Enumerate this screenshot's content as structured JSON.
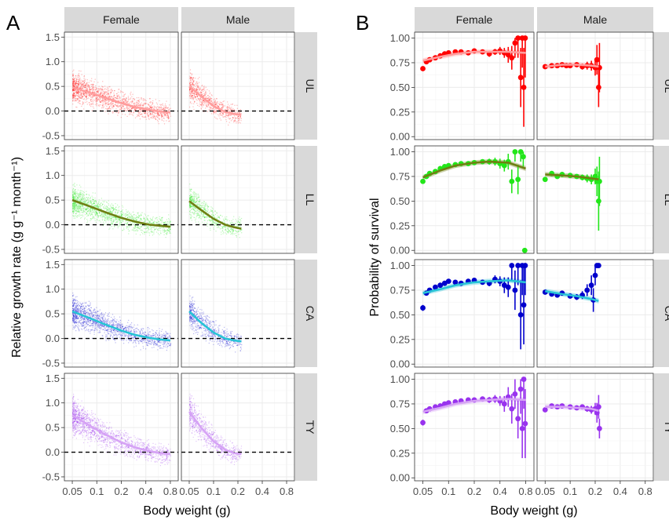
{
  "figure": {
    "panel_letters": [
      "A",
      "B"
    ],
    "sex_labels": [
      "Female",
      "Male"
    ],
    "line_labels": [
      "UL",
      "LL",
      "CA",
      "TY"
    ],
    "colors": {
      "UL": {
        "points": "#ff0000",
        "line": "#ff9c9c"
      },
      "LL": {
        "points": "#22e61a",
        "line": "#6f7f13"
      },
      "CA": {
        "points": "#0000cc",
        "line": "#27c3d6"
      },
      "TY": {
        "points": "#9933ee",
        "line": "#d6a3f5"
      }
    }
  },
  "chart_data": [
    {
      "type": "scatter",
      "panel": "A",
      "ylabel": "Relative growth rate (g g⁻¹ month⁻¹)",
      "xlabel": "Body weight (g)",
      "x_scale": "log",
      "xlim": [
        0.04,
        1.0
      ],
      "ylim": [
        -0.58,
        1.6
      ],
      "x_ticks": [
        0.05,
        0.1,
        0.2,
        0.4,
        0.8
      ],
      "x_tick_labels": [
        "0.05",
        "0.1",
        "0.2",
        "0.4",
        "0.8"
      ],
      "y_ticks": [
        -0.5,
        0.0,
        0.5,
        1.0,
        1.5
      ],
      "y_tick_labels": [
        "-0.5",
        "0.0",
        "0.5",
        "1.0",
        "1.5"
      ],
      "reference_line": {
        "y": 0,
        "style": "dashed"
      },
      "facets": [
        {
          "line": "UL",
          "sex": "Female",
          "x_range": [
            0.05,
            0.8
          ],
          "fit": {
            "x": [
              0.05,
              0.08,
              0.12,
              0.2,
              0.3,
              0.45,
              0.6,
              0.8
            ],
            "y": [
              0.48,
              0.38,
              0.28,
              0.16,
              0.08,
              0.02,
              -0.01,
              -0.03
            ]
          }
        },
        {
          "line": "UL",
          "sex": "Male",
          "x_range": [
            0.05,
            0.22
          ],
          "fit": {
            "x": [
              0.05,
              0.07,
              0.1,
              0.14,
              0.18,
              0.22
            ],
            "y": [
              0.5,
              0.3,
              0.1,
              -0.02,
              -0.06,
              -0.08
            ]
          }
        },
        {
          "line": "LL",
          "sex": "Female",
          "x_range": [
            0.05,
            0.8
          ],
          "fit": {
            "x": [
              0.05,
              0.08,
              0.12,
              0.2,
              0.3,
              0.45,
              0.6,
              0.8
            ],
            "y": [
              0.5,
              0.38,
              0.27,
              0.14,
              0.06,
              0.0,
              -0.02,
              -0.04
            ]
          }
        },
        {
          "line": "LL",
          "sex": "Male",
          "x_range": [
            0.05,
            0.22
          ],
          "fit": {
            "x": [
              0.05,
              0.07,
              0.1,
              0.14,
              0.18,
              0.22
            ],
            "y": [
              0.48,
              0.3,
              0.12,
              0.0,
              -0.05,
              -0.08
            ]
          }
        },
        {
          "line": "CA",
          "sex": "Female",
          "x_range": [
            0.05,
            0.8
          ],
          "fit": {
            "x": [
              0.05,
              0.08,
              0.12,
              0.2,
              0.3,
              0.45,
              0.6,
              0.8
            ],
            "y": [
              0.55,
              0.42,
              0.3,
              0.16,
              0.07,
              0.01,
              -0.02,
              -0.04
            ]
          }
        },
        {
          "line": "CA",
          "sex": "Male",
          "x_range": [
            0.05,
            0.22
          ],
          "fit": {
            "x": [
              0.05,
              0.07,
              0.1,
              0.14,
              0.18,
              0.22
            ],
            "y": [
              0.55,
              0.32,
              0.12,
              0.0,
              -0.04,
              -0.06
            ]
          }
        },
        {
          "line": "TY",
          "sex": "Female",
          "x_range": [
            0.05,
            0.8
          ],
          "fit": {
            "x": [
              0.05,
              0.08,
              0.12,
              0.2,
              0.3,
              0.45,
              0.6,
              0.8
            ],
            "y": [
              0.75,
              0.55,
              0.38,
              0.2,
              0.09,
              0.02,
              -0.02,
              -0.04
            ]
          }
        },
        {
          "line": "TY",
          "sex": "Male",
          "x_range": [
            0.05,
            0.22
          ],
          "fit": {
            "x": [
              0.05,
              0.07,
              0.1,
              0.14,
              0.18,
              0.22
            ],
            "y": [
              0.82,
              0.5,
              0.22,
              0.05,
              -0.02,
              -0.04
            ]
          }
        }
      ]
    },
    {
      "type": "scatter",
      "panel": "B",
      "ylabel": "Probability of survival",
      "xlabel": "Body weight (g)",
      "x_scale": "log",
      "xlim": [
        0.04,
        1.0
      ],
      "ylim": [
        -0.03,
        1.06
      ],
      "x_ticks": [
        0.05,
        0.1,
        0.2,
        0.4,
        0.8
      ],
      "x_tick_labels": [
        "0.05",
        "0.1",
        "0.2",
        "0.4",
        "0.8"
      ],
      "y_ticks": [
        0.0,
        0.25,
        0.5,
        0.75,
        1.0
      ],
      "y_tick_labels": [
        "0.00",
        "0.25",
        "0.50",
        "0.75",
        "1.00"
      ],
      "facets": [
        {
          "line": "UL",
          "sex": "Female",
          "fit": {
            "x": [
              0.05,
              0.08,
              0.12,
              0.2,
              0.3,
              0.5,
              0.8
            ],
            "y": [
              0.77,
              0.81,
              0.84,
              0.86,
              0.86,
              0.86,
              0.85
            ]
          },
          "points": {
            "x": [
              0.05,
              0.055,
              0.06,
              0.07,
              0.08,
              0.09,
              0.1,
              0.12,
              0.14,
              0.17,
              0.2,
              0.25,
              0.3,
              0.35,
              0.4,
              0.45,
              0.5,
              0.55,
              0.6,
              0.65,
              0.7,
              0.73,
              0.76,
              0.79
            ],
            "y": [
              0.69,
              0.76,
              0.78,
              0.8,
              0.82,
              0.84,
              0.85,
              0.86,
              0.86,
              0.85,
              0.87,
              0.86,
              0.84,
              0.86,
              0.87,
              0.85,
              0.83,
              0.8,
              0.95,
              1.0,
              0.6,
              1.0,
              0.5,
              1.0
            ],
            "err": [
              0.02,
              0.02,
              0.02,
              0.02,
              0.02,
              0.02,
              0.02,
              0.02,
              0.02,
              0.02,
              0.02,
              0.02,
              0.03,
              0.03,
              0.04,
              0.05,
              0.08,
              0.12,
              0.15,
              0.2,
              0.3,
              0.3,
              0.4,
              0.4
            ]
          }
        },
        {
          "line": "UL",
          "sex": "Male",
          "fit": {
            "x": [
              0.05,
              0.08,
              0.12,
              0.18,
              0.22
            ],
            "y": [
              0.71,
              0.73,
              0.73,
              0.72,
              0.71
            ]
          },
          "points": {
            "x": [
              0.05,
              0.06,
              0.07,
              0.08,
              0.09,
              0.1,
              0.12,
              0.14,
              0.16,
              0.18,
              0.2,
              0.21,
              0.22,
              0.225
            ],
            "y": [
              0.71,
              0.72,
              0.72,
              0.73,
              0.72,
              0.72,
              0.73,
              0.71,
              0.72,
              0.72,
              0.7,
              0.78,
              0.5,
              0.7
            ],
            "err": [
              0.02,
              0.02,
              0.02,
              0.02,
              0.02,
              0.02,
              0.02,
              0.03,
              0.04,
              0.05,
              0.08,
              0.15,
              0.2,
              0.25
            ]
          }
        },
        {
          "line": "LL",
          "sex": "Female",
          "fit": {
            "x": [
              0.05,
              0.08,
              0.12,
              0.2,
              0.3,
              0.5,
              0.8
            ],
            "y": [
              0.74,
              0.81,
              0.86,
              0.89,
              0.9,
              0.89,
              0.83
            ]
          },
          "points": {
            "x": [
              0.05,
              0.055,
              0.06,
              0.07,
              0.08,
              0.09,
              0.1,
              0.12,
              0.14,
              0.17,
              0.2,
              0.25,
              0.3,
              0.35,
              0.4,
              0.45,
              0.5,
              0.55,
              0.6,
              0.65,
              0.7,
              0.75,
              0.78
            ],
            "y": [
              0.7,
              0.75,
              0.78,
              0.8,
              0.83,
              0.85,
              0.86,
              0.87,
              0.88,
              0.88,
              0.89,
              0.9,
              0.9,
              0.9,
              0.88,
              0.86,
              0.9,
              0.7,
              1.0,
              0.72,
              1.0,
              0.95,
              0.0
            ],
            "err": [
              0.02,
              0.02,
              0.02,
              0.02,
              0.02,
              0.02,
              0.02,
              0.02,
              0.02,
              0.02,
              0.02,
              0.02,
              0.03,
              0.04,
              0.05,
              0.06,
              0.08,
              0.12,
              0.1,
              0.15,
              0.1,
              0.1,
              0.0
            ]
          }
        },
        {
          "line": "LL",
          "sex": "Male",
          "fit": {
            "x": [
              0.05,
              0.08,
              0.12,
              0.18,
              0.22
            ],
            "y": [
              0.77,
              0.76,
              0.75,
              0.73,
              0.72
            ]
          },
          "points": {
            "x": [
              0.05,
              0.06,
              0.07,
              0.08,
              0.1,
              0.12,
              0.14,
              0.16,
              0.18,
              0.2,
              0.21,
              0.22,
              0.225
            ],
            "y": [
              0.72,
              0.78,
              0.75,
              0.77,
              0.76,
              0.75,
              0.74,
              0.73,
              0.72,
              0.75,
              0.7,
              0.5,
              0.7
            ],
            "err": [
              0.02,
              0.02,
              0.02,
              0.02,
              0.02,
              0.02,
              0.03,
              0.04,
              0.05,
              0.08,
              0.15,
              0.3,
              0.25
            ]
          }
        },
        {
          "line": "CA",
          "sex": "Female",
          "fit": {
            "x": [
              0.05,
              0.08,
              0.12,
              0.2,
              0.3,
              0.5,
              0.8
            ],
            "y": [
              0.72,
              0.76,
              0.8,
              0.83,
              0.84,
              0.85,
              0.83
            ]
          },
          "points": {
            "x": [
              0.05,
              0.055,
              0.06,
              0.07,
              0.08,
              0.09,
              0.1,
              0.12,
              0.14,
              0.17,
              0.2,
              0.25,
              0.3,
              0.35,
              0.4,
              0.45,
              0.5,
              0.55,
              0.6,
              0.65,
              0.7,
              0.73,
              0.76,
              0.79
            ],
            "y": [
              0.57,
              0.72,
              0.75,
              0.78,
              0.8,
              0.82,
              0.84,
              0.83,
              0.82,
              0.84,
              0.85,
              0.83,
              0.82,
              0.86,
              0.84,
              0.8,
              0.78,
              1.0,
              0.75,
              1.0,
              0.5,
              1.0,
              0.6,
              1.0
            ],
            "err": [
              0.03,
              0.02,
              0.02,
              0.02,
              0.02,
              0.02,
              0.02,
              0.02,
              0.02,
              0.02,
              0.02,
              0.02,
              0.03,
              0.04,
              0.05,
              0.08,
              0.1,
              0.15,
              0.2,
              0.2,
              0.35,
              0.3,
              0.4,
              0.3
            ]
          }
        },
        {
          "line": "CA",
          "sex": "Male",
          "fit": {
            "x": [
              0.05,
              0.08,
              0.12,
              0.18,
              0.22
            ],
            "y": [
              0.74,
              0.71,
              0.69,
              0.66,
              0.64
            ]
          },
          "points": {
            "x": [
              0.05,
              0.06,
              0.07,
              0.08,
              0.1,
              0.12,
              0.14,
              0.16,
              0.18,
              0.19,
              0.2,
              0.21,
              0.22
            ],
            "y": [
              0.73,
              0.71,
              0.7,
              0.72,
              0.69,
              0.68,
              0.7,
              0.75,
              0.8,
              0.65,
              0.9,
              1.0,
              1.0
            ],
            "err": [
              0.02,
              0.02,
              0.02,
              0.02,
              0.02,
              0.03,
              0.04,
              0.06,
              0.1,
              0.12,
              0.1,
              0.0,
              0.0
            ]
          }
        },
        {
          "line": "TY",
          "sex": "Female",
          "fit": {
            "x": [
              0.05,
              0.08,
              0.12,
              0.2,
              0.3,
              0.5,
              0.8
            ],
            "y": [
              0.67,
              0.71,
              0.75,
              0.78,
              0.79,
              0.8,
              0.79
            ]
          },
          "points": {
            "x": [
              0.05,
              0.055,
              0.06,
              0.07,
              0.08,
              0.09,
              0.1,
              0.12,
              0.14,
              0.17,
              0.2,
              0.25,
              0.3,
              0.35,
              0.4,
              0.45,
              0.5,
              0.55,
              0.6,
              0.65,
              0.7,
              0.73,
              0.76,
              0.79
            ],
            "y": [
              0.56,
              0.68,
              0.7,
              0.72,
              0.73,
              0.75,
              0.76,
              0.77,
              0.78,
              0.79,
              0.79,
              0.8,
              0.79,
              0.8,
              0.78,
              0.75,
              0.82,
              0.7,
              0.85,
              0.6,
              0.9,
              0.5,
              1.0,
              0.55
            ],
            "err": [
              0.03,
              0.02,
              0.02,
              0.02,
              0.02,
              0.02,
              0.02,
              0.02,
              0.02,
              0.02,
              0.02,
              0.02,
              0.03,
              0.04,
              0.05,
              0.08,
              0.1,
              0.15,
              0.15,
              0.2,
              0.25,
              0.3,
              0.3,
              0.35
            ]
          }
        },
        {
          "line": "TY",
          "sex": "Male",
          "fit": {
            "x": [
              0.05,
              0.08,
              0.12,
              0.18,
              0.22
            ],
            "y": [
              0.72,
              0.72,
              0.71,
              0.7,
              0.68
            ]
          },
          "points": {
            "x": [
              0.05,
              0.06,
              0.07,
              0.08,
              0.1,
              0.12,
              0.14,
              0.16,
              0.18,
              0.2,
              0.21,
              0.22,
              0.225
            ],
            "y": [
              0.69,
              0.73,
              0.72,
              0.73,
              0.72,
              0.71,
              0.72,
              0.7,
              0.69,
              0.7,
              0.66,
              0.72,
              0.5
            ],
            "err": [
              0.02,
              0.02,
              0.02,
              0.02,
              0.02,
              0.02,
              0.02,
              0.03,
              0.04,
              0.06,
              0.1,
              0.12,
              0.1
            ]
          }
        }
      ]
    }
  ]
}
